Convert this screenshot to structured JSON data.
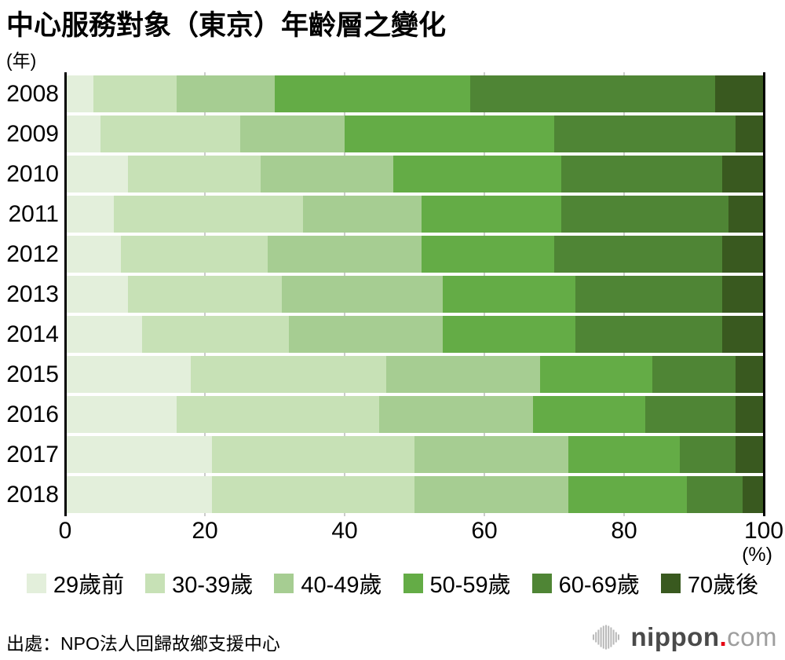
{
  "title": "中心服務對象（東京）年齡層之變化",
  "y_axis_unit": "(年)",
  "x_axis": {
    "tick_values": [
      0,
      20,
      40,
      60,
      80,
      100
    ],
    "unit": "(%)"
  },
  "chart_data": {
    "type": "bar",
    "orientation": "horizontal-stacked",
    "title": "中心服務對象（東京）年齡層之變化",
    "xlabel": "(%)",
    "ylabel": "(年)",
    "xlim": [
      0,
      100
    ],
    "grid": true,
    "legend_position": "bottom",
    "categories": [
      "2008",
      "2009",
      "2010",
      "2011",
      "2012",
      "2013",
      "2014",
      "2015",
      "2016",
      "2017",
      "2018"
    ],
    "series": [
      {
        "name": "29歲前",
        "color": "#e3efdb",
        "values": [
          4,
          5,
          9,
          7,
          8,
          9,
          11,
          18,
          16,
          21,
          21
        ]
      },
      {
        "name": "30-39歲",
        "color": "#c7e1b6",
        "values": [
          12,
          20,
          19,
          27,
          21,
          22,
          21,
          28,
          29,
          29,
          29
        ]
      },
      {
        "name": "40-49歲",
        "color": "#a6cd92",
        "values": [
          14,
          15,
          19,
          17,
          22,
          23,
          22,
          22,
          22,
          22,
          22
        ]
      },
      {
        "name": "50-59歲",
        "color": "#64ac46",
        "values": [
          28,
          30,
          24,
          20,
          19,
          19,
          19,
          16,
          16,
          16,
          17
        ]
      },
      {
        "name": "60-69歲",
        "color": "#4f8535",
        "values": [
          35,
          26,
          23,
          24,
          24,
          21,
          21,
          12,
          13,
          8,
          8
        ]
      },
      {
        "name": "70歲後",
        "color": "#39591f",
        "values": [
          7,
          4,
          6,
          5,
          6,
          6,
          6,
          4,
          4,
          4,
          3
        ]
      }
    ]
  },
  "footer": {
    "source": "出處：NPO法人回歸故鄉支援中心"
  },
  "logo": {
    "text_main": "nippon",
    "dot": ".",
    "text_suffix": "com",
    "dot_color": "#e60012"
  }
}
